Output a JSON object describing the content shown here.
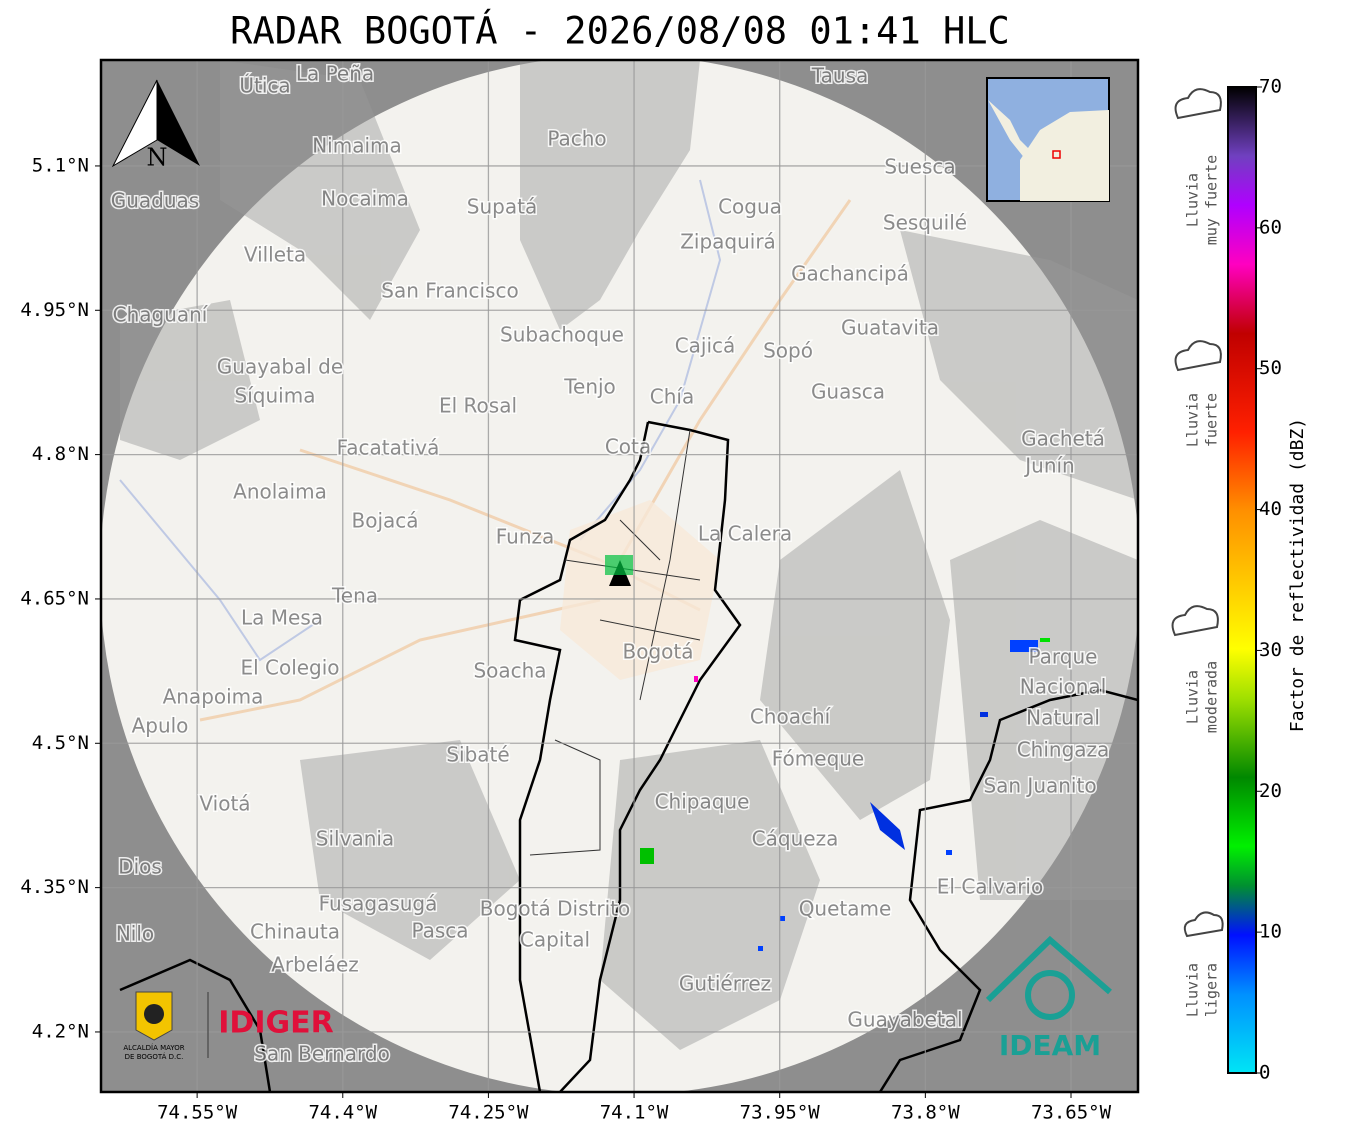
{
  "title": "RADAR BOGOTÁ - 2026/08/08 01:41 HLC",
  "map": {
    "xlim": [
      -74.649,
      -73.581
    ],
    "ylim": [
      4.1376,
      5.2101
    ],
    "lat_ticks": [
      {
        "value": 5.1,
        "label": "5.1°N"
      },
      {
        "value": 4.95,
        "label": "4.95°N"
      },
      {
        "value": 4.8,
        "label": "4.8°N"
      },
      {
        "value": 4.65,
        "label": "4.65°N"
      },
      {
        "value": 4.5,
        "label": "4.5°N"
      },
      {
        "value": 4.35,
        "label": "4.35°N"
      },
      {
        "value": 4.2,
        "label": "4.2°N"
      }
    ],
    "lon_ticks": [
      {
        "value": -74.55,
        "label": "74.55°W"
      },
      {
        "value": -74.4,
        "label": "74.4°W"
      },
      {
        "value": -74.25,
        "label": "74.25°W"
      },
      {
        "value": -74.1,
        "label": "74.1°W"
      },
      {
        "value": -73.95,
        "label": "73.95°W"
      },
      {
        "value": -73.8,
        "label": "73.8°W"
      },
      {
        "value": -73.65,
        "label": "73.65°W"
      }
    ],
    "north": "N",
    "places": [
      "La Peña",
      "Útica",
      "Tausa",
      "Pacho",
      "Nimaima",
      "Guaduas",
      "Nocaima",
      "Supatá",
      "Cogua",
      "Suesca",
      "Sesquilé",
      "Zipaquirá",
      "Villeta",
      "Gachancipá",
      "San Francisco",
      "Chaguaní",
      "Guatavita",
      "Subachoque",
      "Cajicá",
      "Sopó",
      "Guayabal de",
      "Síquima",
      "Tenjo",
      "Chía",
      "Guasca",
      "El Rosal",
      "Facatativá",
      "Cota",
      "Gachetá",
      "Junín",
      "Anolaima",
      "Bojacá",
      "Funza",
      "La Calera",
      "Tena",
      "La Mesa",
      "Bogotá",
      "Parque",
      "Nacional",
      "Natural",
      "Chingaza",
      "El Colegio",
      "Soacha",
      "Anapoima",
      "Apulo",
      "Choachí",
      "Sibaté",
      "Fómeque",
      "San Juanito",
      "Viotá",
      "Chipaque",
      "Silvania",
      "Cáqueza",
      "Dios",
      "El Calvario",
      "Fusagasugá",
      "Bogotá Distrito",
      "Capital",
      "Quetame",
      "Nilo",
      "Chinauta",
      "Pasca",
      "Arbeláez",
      "Gutiérrez",
      "Guayabetal",
      "San Bernardo"
    ]
  },
  "logos": {
    "alcaldia": [
      "ALCALDÍA MAYOR",
      "DE BOGOTÁ D.C."
    ],
    "idiger": "IDIGER",
    "ideam": "IDEAM"
  },
  "colorbar": {
    "label": "Factor de reflectividad (dBZ)",
    "lim": [
      0,
      70
    ],
    "ticks": [
      0,
      10,
      20,
      30,
      40,
      50,
      60,
      70
    ]
  },
  "legend": [
    [
      "Lluvia",
      "muy fuerte"
    ],
    [
      "Lluvia",
      "fuerte"
    ],
    [
      "Lluvia",
      "moderada"
    ],
    [
      "Lluvia",
      "ligera"
    ]
  ]
}
